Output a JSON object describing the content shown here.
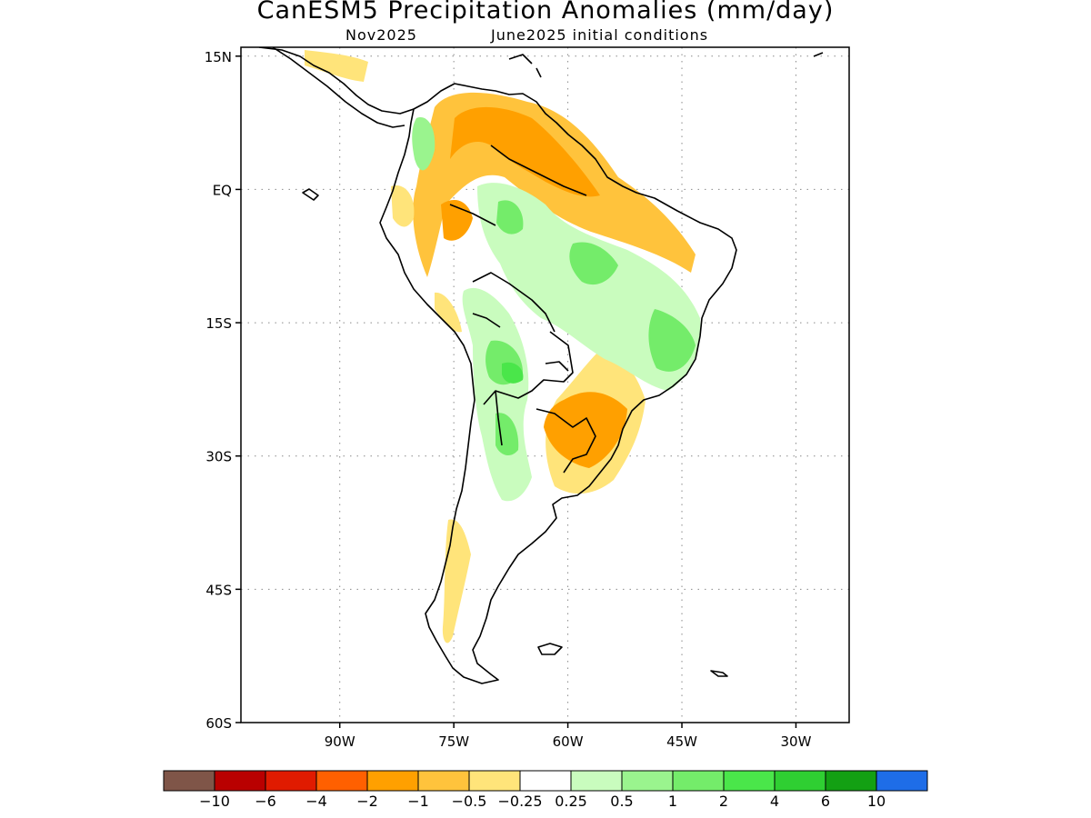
{
  "header": {
    "title": "CanESM5 Precipitation Anomalies (mm/day)",
    "forecast_month": "Nov2025",
    "initial_conditions": "June2025 initial conditions"
  },
  "map": {
    "region": "South America",
    "lon_range": [
      -103,
      -23
    ],
    "lat_range": [
      -60,
      16
    ],
    "lat_ticks": [
      {
        "value": 15,
        "label": "15N"
      },
      {
        "value": 0,
        "label": "EQ"
      },
      {
        "value": -15,
        "label": "15S"
      },
      {
        "value": -30,
        "label": "30S"
      },
      {
        "value": -45,
        "label": "45S"
      },
      {
        "value": -60,
        "label": "60S"
      }
    ],
    "lon_ticks": [
      {
        "value": -90,
        "label": "90W"
      },
      {
        "value": -75,
        "label": "75W"
      },
      {
        "value": -60,
        "label": "60W"
      },
      {
        "value": -45,
        "label": "45W"
      },
      {
        "value": -30,
        "label": "30W"
      }
    ],
    "grid": "dotted"
  },
  "colorbar": {
    "colors": [
      "#7f5548",
      "#b90000",
      "#e01b00",
      "#ff6000",
      "#ffa000",
      "#ffc33c",
      "#ffe47a",
      "#ffffff",
      "#c9fcbe",
      "#9af48e",
      "#74ec6a",
      "#4ae64a",
      "#2fcf32",
      "#13a013",
      "#1e6de8"
    ],
    "labels": [
      "−10",
      "−6",
      "−4",
      "−2",
      "−1",
      "−0.5",
      "−0.25",
      "0.25",
      "0.5",
      "1",
      "2",
      "4",
      "6",
      "10"
    ]
  }
}
